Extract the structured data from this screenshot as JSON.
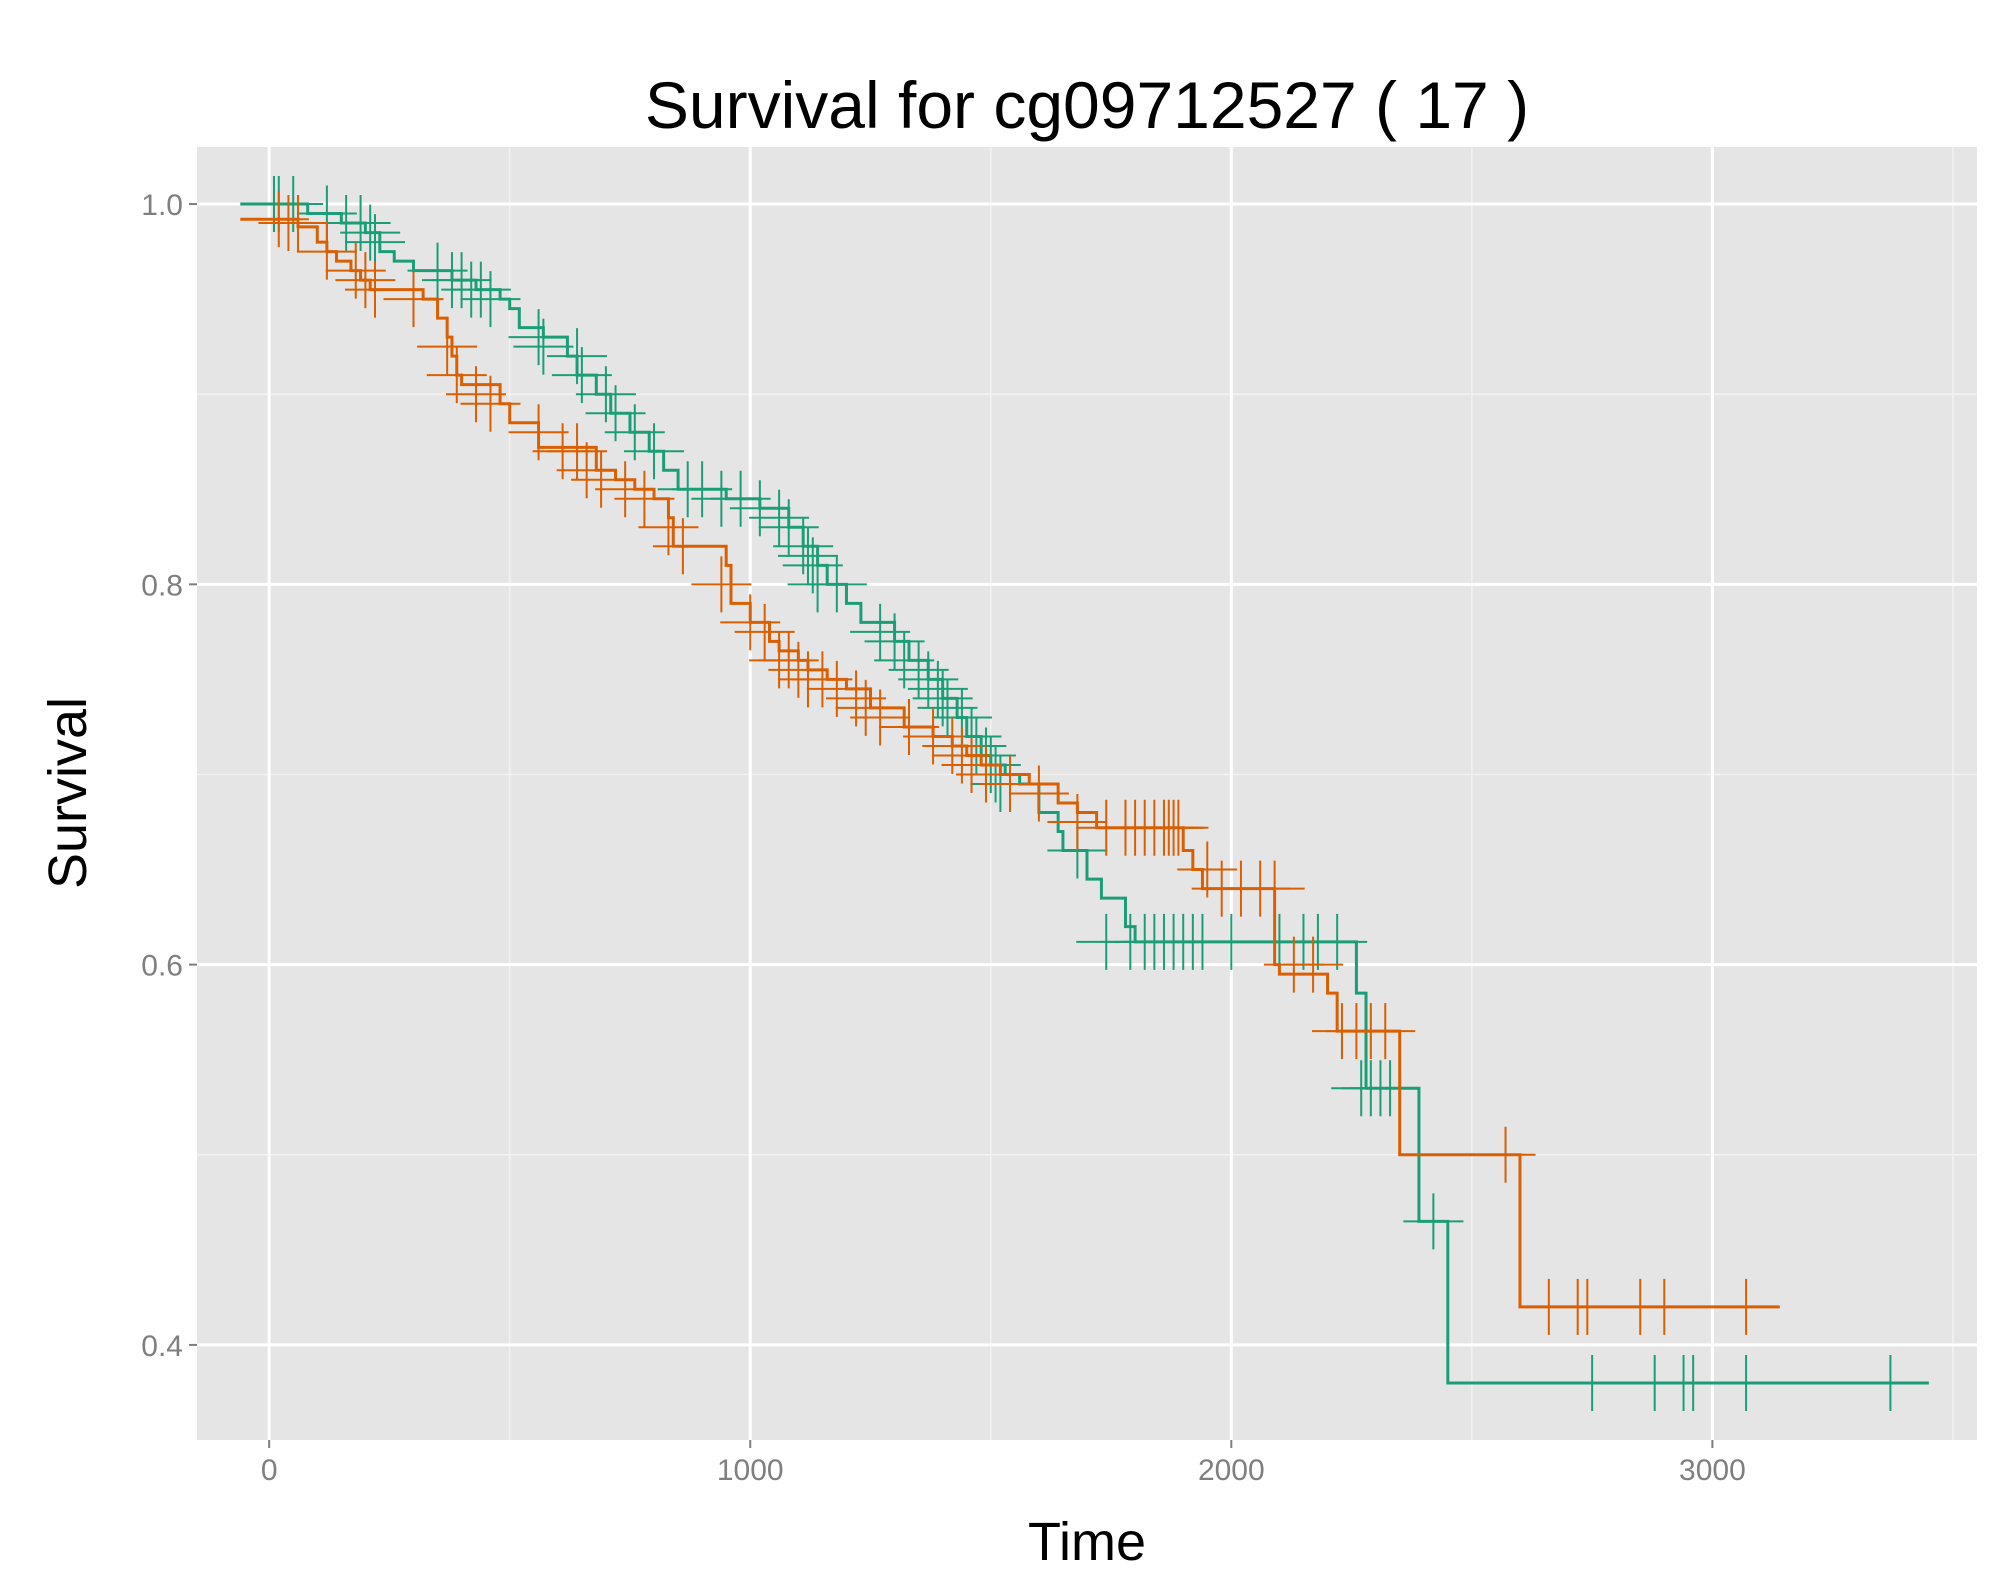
{
  "chart_data": {
    "type": "line",
    "title": "Survival for  cg09712527 ( 17 )",
    "xlabel": "Time",
    "ylabel": "Survival",
    "xlim": [
      -150,
      3550
    ],
    "ylim": [
      0.35,
      1.03
    ],
    "x_ticks": [
      0,
      1000,
      2000,
      3000
    ],
    "x_tick_labels": [
      "0",
      "1000",
      "2000",
      "3000"
    ],
    "y_ticks": [
      0.4,
      0.6,
      0.8,
      1.0
    ],
    "y_tick_labels": [
      "0.4",
      "0.6",
      "0.8",
      "1.0"
    ],
    "grid": true,
    "background": "#e5e5e5",
    "series": [
      {
        "color": "#1b9e77",
        "steps": [
          [
            -60,
            1.0
          ],
          [
            80,
            0.995
          ],
          [
            150,
            0.99
          ],
          [
            200,
            0.985
          ],
          [
            230,
            0.975
          ],
          [
            260,
            0.97
          ],
          [
            300,
            0.965
          ],
          [
            380,
            0.96
          ],
          [
            430,
            0.955
          ],
          [
            480,
            0.95
          ],
          [
            500,
            0.945
          ],
          [
            520,
            0.935
          ],
          [
            570,
            0.93
          ],
          [
            620,
            0.92
          ],
          [
            640,
            0.91
          ],
          [
            680,
            0.9
          ],
          [
            710,
            0.89
          ],
          [
            750,
            0.88
          ],
          [
            790,
            0.87
          ],
          [
            820,
            0.86
          ],
          [
            850,
            0.85
          ],
          [
            950,
            0.845
          ],
          [
            1020,
            0.84
          ],
          [
            1080,
            0.83
          ],
          [
            1110,
            0.82
          ],
          [
            1140,
            0.81
          ],
          [
            1160,
            0.8
          ],
          [
            1200,
            0.79
          ],
          [
            1230,
            0.78
          ],
          [
            1300,
            0.77
          ],
          [
            1330,
            0.76
          ],
          [
            1370,
            0.75
          ],
          [
            1400,
            0.74
          ],
          [
            1430,
            0.73
          ],
          [
            1450,
            0.72
          ],
          [
            1480,
            0.71
          ],
          [
            1500,
            0.705
          ],
          [
            1530,
            0.7
          ],
          [
            1560,
            0.695
          ],
          [
            1600,
            0.68
          ],
          [
            1640,
            0.67
          ],
          [
            1650,
            0.66
          ],
          [
            1700,
            0.645
          ],
          [
            1730,
            0.635
          ],
          [
            1780,
            0.62
          ],
          [
            1800,
            0.612
          ],
          [
            2260,
            0.585
          ],
          [
            2280,
            0.535
          ],
          [
            2390,
            0.465
          ],
          [
            2450,
            0.38
          ],
          [
            3450,
            0.38
          ]
        ],
        "censors": [
          [
            10,
            1.0
          ],
          [
            20,
            1.0
          ],
          [
            50,
            1.0
          ],
          [
            120,
            0.995
          ],
          [
            160,
            0.99
          ],
          [
            190,
            0.99
          ],
          [
            210,
            0.985
          ],
          [
            220,
            0.98
          ],
          [
            350,
            0.965
          ],
          [
            380,
            0.96
          ],
          [
            400,
            0.96
          ],
          [
            420,
            0.955
          ],
          [
            440,
            0.955
          ],
          [
            460,
            0.95
          ],
          [
            560,
            0.93
          ],
          [
            570,
            0.925
          ],
          [
            640,
            0.92
          ],
          [
            650,
            0.91
          ],
          [
            700,
            0.9
          ],
          [
            720,
            0.89
          ],
          [
            760,
            0.88
          ],
          [
            800,
            0.87
          ],
          [
            870,
            0.85
          ],
          [
            900,
            0.85
          ],
          [
            940,
            0.845
          ],
          [
            980,
            0.845
          ],
          [
            1020,
            0.84
          ],
          [
            1060,
            0.835
          ],
          [
            1080,
            0.83
          ],
          [
            1110,
            0.82
          ],
          [
            1120,
            0.815
          ],
          [
            1130,
            0.81
          ],
          [
            1140,
            0.8
          ],
          [
            1180,
            0.8
          ],
          [
            1270,
            0.775
          ],
          [
            1300,
            0.77
          ],
          [
            1320,
            0.76
          ],
          [
            1350,
            0.755
          ],
          [
            1370,
            0.75
          ],
          [
            1390,
            0.745
          ],
          [
            1400,
            0.74
          ],
          [
            1410,
            0.735
          ],
          [
            1440,
            0.73
          ],
          [
            1460,
            0.72
          ],
          [
            1470,
            0.715
          ],
          [
            1490,
            0.71
          ],
          [
            1500,
            0.705
          ],
          [
            1510,
            0.7
          ],
          [
            1520,
            0.695
          ],
          [
            1680,
            0.66
          ],
          [
            1740,
            0.612
          ],
          [
            1790,
            0.612
          ],
          [
            1820,
            0.612
          ],
          [
            1840,
            0.612
          ],
          [
            1860,
            0.612
          ],
          [
            1880,
            0.612
          ],
          [
            1900,
            0.612
          ],
          [
            1920,
            0.612
          ],
          [
            1940,
            0.612
          ],
          [
            2000,
            0.612
          ],
          [
            2100,
            0.612
          ],
          [
            2150,
            0.612
          ],
          [
            2180,
            0.612
          ],
          [
            2220,
            0.612
          ],
          [
            2270,
            0.535
          ],
          [
            2290,
            0.535
          ],
          [
            2310,
            0.535
          ],
          [
            2330,
            0.535
          ],
          [
            2420,
            0.465
          ],
          [
            2750,
            0.38
          ],
          [
            2880,
            0.38
          ],
          [
            2940,
            0.38
          ],
          [
            2960,
            0.38
          ],
          [
            3070,
            0.38
          ],
          [
            3370,
            0.38
          ]
        ]
      },
      {
        "color": "#d95f02",
        "steps": [
          [
            -60,
            0.992
          ],
          [
            60,
            0.988
          ],
          [
            100,
            0.98
          ],
          [
            120,
            0.975
          ],
          [
            140,
            0.97
          ],
          [
            170,
            0.965
          ],
          [
            190,
            0.96
          ],
          [
            210,
            0.955
          ],
          [
            320,
            0.95
          ],
          [
            350,
            0.94
          ],
          [
            370,
            0.93
          ],
          [
            380,
            0.92
          ],
          [
            390,
            0.91
          ],
          [
            400,
            0.905
          ],
          [
            480,
            0.895
          ],
          [
            500,
            0.885
          ],
          [
            560,
            0.872
          ],
          [
            680,
            0.86
          ],
          [
            720,
            0.855
          ],
          [
            760,
            0.85
          ],
          [
            800,
            0.845
          ],
          [
            830,
            0.835
          ],
          [
            840,
            0.82
          ],
          [
            950,
            0.81
          ],
          [
            960,
            0.79
          ],
          [
            1000,
            0.78
          ],
          [
            1040,
            0.77
          ],
          [
            1060,
            0.765
          ],
          [
            1100,
            0.76
          ],
          [
            1120,
            0.755
          ],
          [
            1160,
            0.75
          ],
          [
            1200,
            0.745
          ],
          [
            1250,
            0.735
          ],
          [
            1320,
            0.725
          ],
          [
            1380,
            0.72
          ],
          [
            1420,
            0.715
          ],
          [
            1450,
            0.71
          ],
          [
            1480,
            0.705
          ],
          [
            1520,
            0.7
          ],
          [
            1580,
            0.695
          ],
          [
            1640,
            0.685
          ],
          [
            1680,
            0.68
          ],
          [
            1720,
            0.672
          ],
          [
            1900,
            0.66
          ],
          [
            1920,
            0.65
          ],
          [
            1940,
            0.64
          ],
          [
            2090,
            0.6
          ],
          [
            2100,
            0.595
          ],
          [
            2200,
            0.585
          ],
          [
            2220,
            0.565
          ],
          [
            2350,
            0.5
          ],
          [
            2600,
            0.42
          ],
          [
            3140,
            0.42
          ]
        ],
        "censors": [
          [
            20,
            0.992
          ],
          [
            40,
            0.99
          ],
          [
            60,
            0.99
          ],
          [
            120,
            0.975
          ],
          [
            180,
            0.965
          ],
          [
            200,
            0.96
          ],
          [
            220,
            0.955
          ],
          [
            300,
            0.95
          ],
          [
            370,
            0.925
          ],
          [
            390,
            0.91
          ],
          [
            430,
            0.9
          ],
          [
            460,
            0.895
          ],
          [
            560,
            0.88
          ],
          [
            610,
            0.87
          ],
          [
            640,
            0.87
          ],
          [
            660,
            0.86
          ],
          [
            690,
            0.855
          ],
          [
            740,
            0.85
          ],
          [
            780,
            0.845
          ],
          [
            830,
            0.83
          ],
          [
            860,
            0.82
          ],
          [
            940,
            0.8
          ],
          [
            1000,
            0.78
          ],
          [
            1030,
            0.775
          ],
          [
            1060,
            0.76
          ],
          [
            1080,
            0.76
          ],
          [
            1100,
            0.755
          ],
          [
            1120,
            0.75
          ],
          [
            1150,
            0.75
          ],
          [
            1180,
            0.745
          ],
          [
            1220,
            0.74
          ],
          [
            1240,
            0.735
          ],
          [
            1270,
            0.73
          ],
          [
            1330,
            0.725
          ],
          [
            1380,
            0.72
          ],
          [
            1420,
            0.715
          ],
          [
            1440,
            0.71
          ],
          [
            1460,
            0.705
          ],
          [
            1490,
            0.7
          ],
          [
            1540,
            0.695
          ],
          [
            1600,
            0.69
          ],
          [
            1680,
            0.675
          ],
          [
            1740,
            0.672
          ],
          [
            1780,
            0.672
          ],
          [
            1800,
            0.672
          ],
          [
            1820,
            0.672
          ],
          [
            1840,
            0.672
          ],
          [
            1860,
            0.672
          ],
          [
            1870,
            0.672
          ],
          [
            1880,
            0.672
          ],
          [
            1890,
            0.672
          ],
          [
            1950,
            0.65
          ],
          [
            1980,
            0.64
          ],
          [
            2020,
            0.64
          ],
          [
            2060,
            0.64
          ],
          [
            2090,
            0.64
          ],
          [
            2130,
            0.6
          ],
          [
            2170,
            0.6
          ],
          [
            2230,
            0.565
          ],
          [
            2260,
            0.565
          ],
          [
            2290,
            0.565
          ],
          [
            2320,
            0.565
          ],
          [
            2570,
            0.5
          ],
          [
            2660,
            0.42
          ],
          [
            2720,
            0.42
          ],
          [
            2740,
            0.42
          ],
          [
            2850,
            0.42
          ],
          [
            2900,
            0.42
          ],
          [
            3070,
            0.42
          ]
        ]
      }
    ]
  }
}
